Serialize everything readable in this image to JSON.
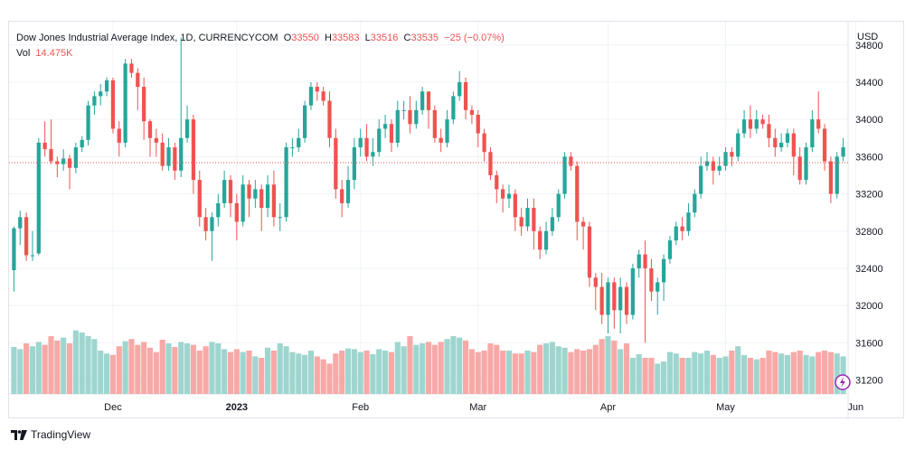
{
  "legend": {
    "title": "Dow Jones Industrial Average Index, 1D, CURRENCYCOM",
    "open_key": "O",
    "open": "33550",
    "high_key": "H",
    "high": "33583",
    "low_key": "L",
    "low": "33516",
    "close_key": "C",
    "close": "33535",
    "change": "−25 (−0.07%)",
    "vol_label": "Vol",
    "vol_value": "14.475K"
  },
  "footer": {
    "brand": "TradingView"
  },
  "colors": {
    "up": "#26a69a",
    "down": "#ef5350",
    "vol_up": "#9ed6cf",
    "vol_down": "#f7a9a7",
    "grid": "#f0f3fa"
  },
  "chart_data": {
    "type": "candlestick",
    "currency": "USD",
    "ylim": [
      31050,
      35050
    ],
    "yticks": [
      34800,
      34400,
      34000,
      33600,
      33200,
      32800,
      32400,
      32000,
      31600,
      31200
    ],
    "xticks": [
      {
        "label": "Dec",
        "index": 16
      },
      {
        "label": "2023",
        "index": 36
      },
      {
        "label": "Feb",
        "index": 56
      },
      {
        "label": "Mar",
        "index": 75
      },
      {
        "label": "Apr",
        "index": 96
      },
      {
        "label": "May",
        "index": 115
      },
      {
        "label": "Jun",
        "index": 136
      }
    ],
    "last_price": 33535,
    "volume_max": 100,
    "candles": [
      [
        32380,
        32830,
        32150,
        32850,
        65
      ],
      [
        32830,
        32950,
        32650,
        33020,
        62
      ],
      [
        32950,
        32540,
        32480,
        33000,
        70
      ],
      [
        32540,
        32540,
        32480,
        32800,
        66
      ],
      [
        32560,
        33750,
        32540,
        33800,
        72
      ],
      [
        33750,
        33680,
        33600,
        33980,
        68
      ],
      [
        33680,
        33550,
        33520,
        34000,
        80
      ],
      [
        33550,
        33520,
        33380,
        33600,
        74
      ],
      [
        33520,
        33580,
        33450,
        33680,
        78
      ],
      [
        33580,
        33480,
        33250,
        33620,
        70
      ],
      [
        33480,
        33700,
        33420,
        33750,
        88
      ],
      [
        33700,
        33780,
        33650,
        33820,
        85
      ],
      [
        33780,
        34150,
        33720,
        34200,
        80
      ],
      [
        34150,
        34250,
        34050,
        34300,
        76
      ],
      [
        34250,
        34300,
        34150,
        34380,
        60
      ],
      [
        34300,
        34420,
        34250,
        34450,
        56
      ],
      [
        34420,
        33900,
        33850,
        34450,
        54
      ],
      [
        33900,
        33750,
        33600,
        33980,
        66
      ],
      [
        33750,
        34600,
        33700,
        34650,
        73
      ],
      [
        34600,
        34500,
        34450,
        34650,
        76
      ],
      [
        34500,
        34350,
        34100,
        34550,
        68
      ],
      [
        34350,
        33980,
        33780,
        34450,
        72
      ],
      [
        33980,
        33800,
        33600,
        34000,
        64
      ],
      [
        33800,
        33750,
        33600,
        33900,
        58
      ],
      [
        33750,
        33500,
        33450,
        33850,
        75
      ],
      [
        33500,
        33700,
        33450,
        33800,
        70
      ],
      [
        33700,
        33450,
        33350,
        33750,
        65
      ],
      [
        33450,
        33800,
        33380,
        34880,
        72
      ],
      [
        33800,
        34000,
        33750,
        34150,
        70
      ],
      [
        34000,
        33350,
        33200,
        34050,
        68
      ],
      [
        33350,
        32950,
        32850,
        33450,
        60
      ],
      [
        32950,
        32800,
        32700,
        33050,
        66
      ],
      [
        32800,
        32950,
        32480,
        33000,
        72
      ],
      [
        32950,
        33100,
        32850,
        33200,
        70
      ],
      [
        33100,
        33350,
        33050,
        33450,
        62
      ],
      [
        33350,
        33100,
        32950,
        33400,
        58
      ],
      [
        33100,
        32900,
        32700,
        33200,
        62
      ],
      [
        32900,
        33300,
        32850,
        33400,
        58
      ],
      [
        33300,
        33150,
        32950,
        33350,
        60
      ],
      [
        33150,
        33250,
        33050,
        33350,
        52
      ],
      [
        33250,
        33050,
        32800,
        33300,
        50
      ],
      [
        33050,
        33300,
        32950,
        33400,
        64
      ],
      [
        33300,
        32950,
        32850,
        33450,
        60
      ],
      [
        32950,
        32950,
        32800,
        33100,
        70
      ],
      [
        32950,
        33700,
        32900,
        33750,
        66
      ],
      [
        33700,
        33700,
        33600,
        33800,
        58
      ],
      [
        33700,
        33800,
        33650,
        33900,
        56
      ],
      [
        33800,
        34150,
        33750,
        34200,
        54
      ],
      [
        34150,
        34350,
        34100,
        34400,
        60
      ],
      [
        34350,
        34300,
        34200,
        34400,
        52
      ],
      [
        34300,
        34200,
        34150,
        34350,
        48
      ],
      [
        34200,
        33800,
        33700,
        34300,
        42
      ],
      [
        33800,
        33250,
        33150,
        33900,
        56
      ],
      [
        33250,
        33100,
        32950,
        33350,
        60
      ],
      [
        33100,
        33350,
        33050,
        33500,
        63
      ],
      [
        33350,
        33700,
        33250,
        33800,
        62
      ],
      [
        33700,
        33800,
        33600,
        33900,
        58
      ],
      [
        33800,
        33600,
        33550,
        33950,
        60
      ],
      [
        33600,
        33650,
        33500,
        33800,
        55
      ],
      [
        33650,
        33900,
        33600,
        34000,
        62
      ],
      [
        33900,
        33950,
        33800,
        34050,
        60
      ],
      [
        33950,
        33750,
        33650,
        34000,
        58
      ],
      [
        33750,
        34100,
        33700,
        34200,
        72
      ],
      [
        34100,
        34100,
        34000,
        34200,
        66
      ],
      [
        34100,
        33950,
        33850,
        34250,
        80
      ],
      [
        33950,
        34100,
        33900,
        34200,
        68
      ],
      [
        34100,
        34300,
        34050,
        34350,
        70
      ],
      [
        34300,
        34100,
        33900,
        34300,
        72
      ],
      [
        34100,
        33800,
        33750,
        34150,
        68
      ],
      [
        33800,
        33750,
        33650,
        33900,
        72
      ],
      [
        33750,
        34000,
        33700,
        34100,
        76
      ],
      [
        34000,
        34250,
        33950,
        34300,
        80
      ],
      [
        34250,
        34400,
        34200,
        34520,
        78
      ],
      [
        34400,
        34100,
        34000,
        34450,
        74
      ],
      [
        34100,
        34050,
        33950,
        34150,
        62
      ],
      [
        34050,
        33850,
        33700,
        34100,
        58
      ],
      [
        33850,
        33650,
        33550,
        33900,
        60
      ],
      [
        33650,
        33400,
        33350,
        33700,
        70
      ],
      [
        33400,
        33250,
        33100,
        33450,
        68
      ],
      [
        33250,
        33150,
        33000,
        33300,
        60
      ],
      [
        33150,
        33200,
        33050,
        33300,
        60
      ],
      [
        33200,
        32950,
        32800,
        33250,
        56
      ],
      [
        32950,
        32850,
        32750,
        33050,
        56
      ],
      [
        32850,
        33050,
        32800,
        33150,
        60
      ],
      [
        33050,
        32800,
        32600,
        33150,
        58
      ],
      [
        32800,
        32600,
        32500,
        32850,
        68
      ],
      [
        32600,
        32800,
        32550,
        32900,
        70
      ],
      [
        32800,
        32950,
        32750,
        33050,
        72
      ],
      [
        32950,
        33200,
        32900,
        33250,
        66
      ],
      [
        33200,
        33600,
        33150,
        33650,
        64
      ],
      [
        33600,
        33500,
        33450,
        33650,
        58
      ],
      [
        33500,
        32900,
        32700,
        33550,
        62
      ],
      [
        32900,
        32850,
        32600,
        32950,
        60
      ],
      [
        32850,
        32300,
        32200,
        32900,
        62
      ],
      [
        32300,
        32200,
        31950,
        32350,
        68
      ],
      [
        32200,
        31900,
        31800,
        32350,
        76
      ],
      [
        31900,
        32250,
        31700,
        32300,
        80
      ],
      [
        32250,
        31950,
        31750,
        32300,
        74
      ],
      [
        31950,
        32200,
        31700,
        32300,
        62
      ],
      [
        32200,
        31900,
        31800,
        32250,
        70
      ],
      [
        31900,
        32400,
        31850,
        32450,
        50
      ],
      [
        32400,
        32550,
        32300,
        32600,
        55
      ],
      [
        32550,
        32400,
        31600,
        32700,
        50
      ],
      [
        32400,
        32150,
        32050,
        32500,
        50
      ],
      [
        32150,
        32250,
        31900,
        32300,
        42
      ],
      [
        32250,
        32500,
        32050,
        32550,
        45
      ],
      [
        32500,
        32700,
        32450,
        32750,
        58
      ],
      [
        32700,
        32850,
        32650,
        32900,
        56
      ],
      [
        32850,
        32800,
        32700,
        32950,
        50
      ],
      [
        32800,
        33000,
        32750,
        33100,
        50
      ],
      [
        33000,
        33200,
        32950,
        33250,
        58
      ],
      [
        33200,
        33500,
        33150,
        33600,
        56
      ],
      [
        33500,
        33550,
        33450,
        33650,
        60
      ],
      [
        33550,
        33450,
        33300,
        33600,
        54
      ],
      [
        33450,
        33500,
        33400,
        33600,
        50
      ],
      [
        33500,
        33650,
        33450,
        33700,
        52
      ],
      [
        33650,
        33600,
        33500,
        33700,
        60
      ],
      [
        33600,
        33850,
        33550,
        33900,
        66
      ],
      [
        33850,
        34000,
        33800,
        34100,
        54
      ],
      [
        34000,
        33900,
        33800,
        34150,
        50
      ],
      [
        33900,
        34000,
        33850,
        34100,
        48
      ],
      [
        34000,
        33950,
        33900,
        34050,
        50
      ],
      [
        33950,
        33800,
        33700,
        34050,
        60
      ],
      [
        33800,
        33700,
        33600,
        33900,
        58
      ],
      [
        33700,
        33750,
        33650,
        33850,
        56
      ],
      [
        33750,
        33850,
        33700,
        33900,
        54
      ],
      [
        33850,
        33600,
        33400,
        33900,
        58
      ],
      [
        33600,
        33350,
        33300,
        33700,
        60
      ],
      [
        33350,
        33700,
        33300,
        33750,
        54
      ],
      [
        33700,
        34000,
        33650,
        34100,
        52
      ],
      [
        34000,
        33900,
        33850,
        34300,
        58
      ],
      [
        33900,
        33550,
        33450,
        33950,
        60
      ],
      [
        33550,
        33200,
        33100,
        33600,
        58
      ],
      [
        33200,
        33600,
        33150,
        33650,
        56
      ],
      [
        33600,
        33700,
        33550,
        33800,
        52
      ]
    ]
  }
}
